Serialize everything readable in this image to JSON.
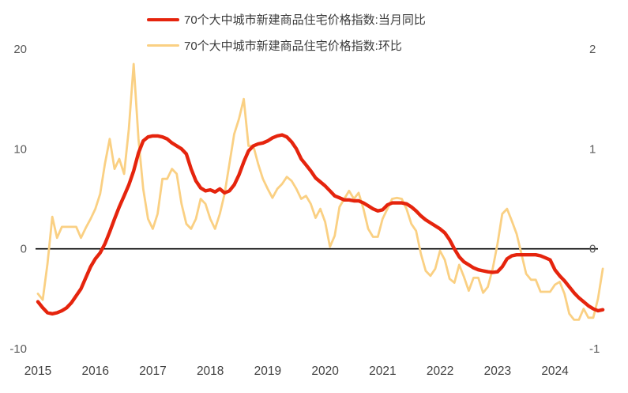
{
  "chart_data": {
    "type": "line",
    "title": "",
    "x_start": "2015-01",
    "x_end": "2024-11",
    "frequency": "monthly",
    "x_year_labels": [
      "2015",
      "2016",
      "2017",
      "2018",
      "2019",
      "2020",
      "2021",
      "2022",
      "2023",
      "2024"
    ],
    "left_axis": {
      "ticks": [
        "20",
        "10",
        "0",
        "-10"
      ],
      "tick_values": [
        20,
        10,
        0,
        -10
      ],
      "min": -10,
      "max": 20
    },
    "right_axis": {
      "ticks": [
        "2",
        "1",
        "0",
        "-1"
      ],
      "tick_values": [
        2,
        1,
        0,
        -1
      ],
      "min": -1,
      "max": 2
    },
    "zero_line": true,
    "grid": false,
    "legend_position": "top",
    "series": [
      {
        "name": "70个大中城市新建商品住宅价格指数:当月同比",
        "axis": "left",
        "color": "#e5240d",
        "stroke_width": 4.4,
        "values": [
          -5.3,
          -5.9,
          -6.4,
          -6.5,
          -6.4,
          -6.2,
          -5.9,
          -5.4,
          -4.7,
          -4.0,
          -2.9,
          -1.8,
          -1.0,
          -0.4,
          0.5,
          1.7,
          3.0,
          4.2,
          5.3,
          6.4,
          7.8,
          9.6,
          10.8,
          11.2,
          11.3,
          11.3,
          11.2,
          11.0,
          10.6,
          10.3,
          10.0,
          9.5,
          8.0,
          6.8,
          6.1,
          5.8,
          5.9,
          5.7,
          6.0,
          5.6,
          5.8,
          6.4,
          7.4,
          8.7,
          9.8,
          10.3,
          10.5,
          10.6,
          10.8,
          11.1,
          11.3,
          11.4,
          11.2,
          10.7,
          10.0,
          9.0,
          8.4,
          7.8,
          7.1,
          6.7,
          6.3,
          5.8,
          5.3,
          5.1,
          4.9,
          4.9,
          4.8,
          4.8,
          4.6,
          4.3,
          4.0,
          3.8,
          3.9,
          4.4,
          4.6,
          4.6,
          4.6,
          4.5,
          4.2,
          3.8,
          3.3,
          2.9,
          2.6,
          2.3,
          2.0,
          1.6,
          0.9,
          0.0,
          -0.8,
          -1.3,
          -1.6,
          -1.9,
          -2.1,
          -2.2,
          -2.3,
          -2.35,
          -2.3,
          -1.8,
          -1.0,
          -0.7,
          -0.6,
          -0.6,
          -0.6,
          -0.6,
          -0.6,
          -0.7,
          -0.9,
          -1.1,
          -2.1,
          -2.7,
          -3.2,
          -3.8,
          -4.4,
          -4.9,
          -5.3,
          -5.7,
          -6.0,
          -6.2,
          -6.1
        ]
      },
      {
        "name": "70个大中城市新建商品住宅价格指数:环比",
        "axis": "right",
        "color": "#fad083",
        "stroke_width": 2.8,
        "values": [
          -0.45,
          -0.51,
          -0.15,
          0.32,
          0.11,
          0.22,
          0.22,
          0.22,
          0.22,
          0.11,
          0.21,
          0.3,
          0.4,
          0.55,
          0.85,
          1.1,
          0.8,
          0.9,
          0.75,
          1.2,
          1.85,
          1.1,
          0.6,
          0.3,
          0.2,
          0.35,
          0.7,
          0.7,
          0.8,
          0.75,
          0.45,
          0.25,
          0.2,
          0.3,
          0.5,
          0.45,
          0.3,
          0.2,
          0.35,
          0.55,
          0.85,
          1.15,
          1.3,
          1.5,
          1.03,
          1.03,
          0.85,
          0.7,
          0.6,
          0.51,
          0.6,
          0.65,
          0.72,
          0.68,
          0.6,
          0.5,
          0.53,
          0.45,
          0.31,
          0.4,
          0.27,
          0.02,
          0.13,
          0.42,
          0.5,
          0.58,
          0.5,
          0.56,
          0.4,
          0.2,
          0.12,
          0.12,
          0.3,
          0.4,
          0.5,
          0.51,
          0.5,
          0.4,
          0.25,
          0.18,
          -0.05,
          -0.22,
          -0.27,
          -0.2,
          -0.02,
          -0.11,
          -0.3,
          -0.34,
          -0.16,
          -0.28,
          -0.42,
          -0.29,
          -0.29,
          -0.44,
          -0.38,
          -0.2,
          0.05,
          0.35,
          0.4,
          0.28,
          0.15,
          -0.05,
          -0.25,
          -0.31,
          -0.31,
          -0.43,
          -0.43,
          -0.43,
          -0.36,
          -0.33,
          -0.45,
          -0.65,
          -0.71,
          -0.71,
          -0.6,
          -0.69,
          -0.69,
          -0.5,
          -0.2
        ]
      }
    ]
  },
  "colors": {
    "background": "#ffffff",
    "zero_line": "#000000",
    "axis_text": "#595959",
    "x_text": "#414141"
  }
}
